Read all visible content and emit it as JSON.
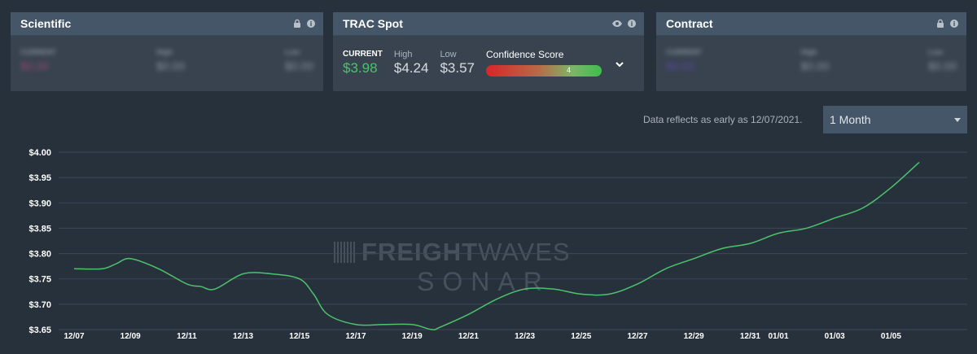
{
  "cards": {
    "scientific": {
      "title": "Scientific",
      "current_label": "CURRENT",
      "current_value": "$0.00",
      "high_label": "High",
      "high_value": "$0.00",
      "low_label": "Low",
      "low_value": "$0.00",
      "icons": [
        "lock-icon",
        "info-icon"
      ]
    },
    "spot": {
      "title": "TRAC Spot",
      "current_label": "CURRENT",
      "current_value": "$3.98",
      "high_label": "High",
      "high_value": "$4.24",
      "low_label": "Low",
      "low_value": "$3.57",
      "confidence_label": "Confidence Score",
      "confidence_score": "4",
      "icons": [
        "eye-icon",
        "info-icon",
        "chevron-down-icon"
      ]
    },
    "contract": {
      "title": "Contract",
      "current_label": "CURRENT",
      "current_value": "$0.00",
      "high_label": "High",
      "high_value": "$0.00",
      "low_label": "Low",
      "low_value": "$0.00",
      "icons": [
        "lock-icon",
        "info-icon"
      ]
    }
  },
  "range": {
    "note": "Data reflects as early as 12/07/2021.",
    "selected": "1 Month"
  },
  "watermark": {
    "line1_bold": "FREIGHT",
    "line1_thin": "WAVES",
    "line2": "SONAR"
  },
  "colors": {
    "background": "#27313c",
    "card": "#38434f",
    "card_header": "#445667",
    "line": "#4cc36b",
    "current_value": "#4cc36b"
  },
  "chart_data": {
    "type": "line",
    "ylim": [
      3.65,
      4.0
    ],
    "yticks": [
      "$4.00",
      "$3.95",
      "$3.90",
      "$3.85",
      "$3.80",
      "$3.75",
      "$3.70",
      "$3.65"
    ],
    "ytick_values": [
      4.0,
      3.95,
      3.9,
      3.85,
      3.8,
      3.75,
      3.7,
      3.65
    ],
    "xticks": [
      "12/07",
      "12/09",
      "12/11",
      "12/13",
      "12/15",
      "12/17",
      "12/19",
      "12/21",
      "12/23",
      "12/25",
      "12/27",
      "12/29",
      "12/31",
      "01/01",
      "01/03",
      "01/05"
    ],
    "xtick_days": [
      0,
      2,
      4,
      6,
      8,
      10,
      12,
      14,
      16,
      18,
      20,
      22,
      24,
      25,
      27,
      29
    ],
    "grid": true,
    "series": [
      {
        "x": [
          0,
          1,
          1.5,
          2,
          3,
          4,
          4.5,
          5,
          6,
          7,
          8,
          8.5,
          9,
          10,
          11,
          12,
          12.7,
          13,
          14,
          15,
          16,
          17,
          18,
          19,
          20,
          21,
          22,
          23,
          24,
          25,
          26,
          27,
          28,
          29,
          30
        ],
        "y": [
          3.77,
          3.77,
          3.78,
          3.79,
          3.77,
          3.74,
          3.735,
          3.73,
          3.76,
          3.76,
          3.75,
          3.72,
          3.68,
          3.66,
          3.66,
          3.66,
          3.65,
          3.655,
          3.68,
          3.71,
          3.73,
          3.73,
          3.72,
          3.72,
          3.74,
          3.77,
          3.79,
          3.81,
          3.82,
          3.84,
          3.85,
          3.87,
          3.89,
          3.93,
          3.98
        ]
      }
    ]
  }
}
